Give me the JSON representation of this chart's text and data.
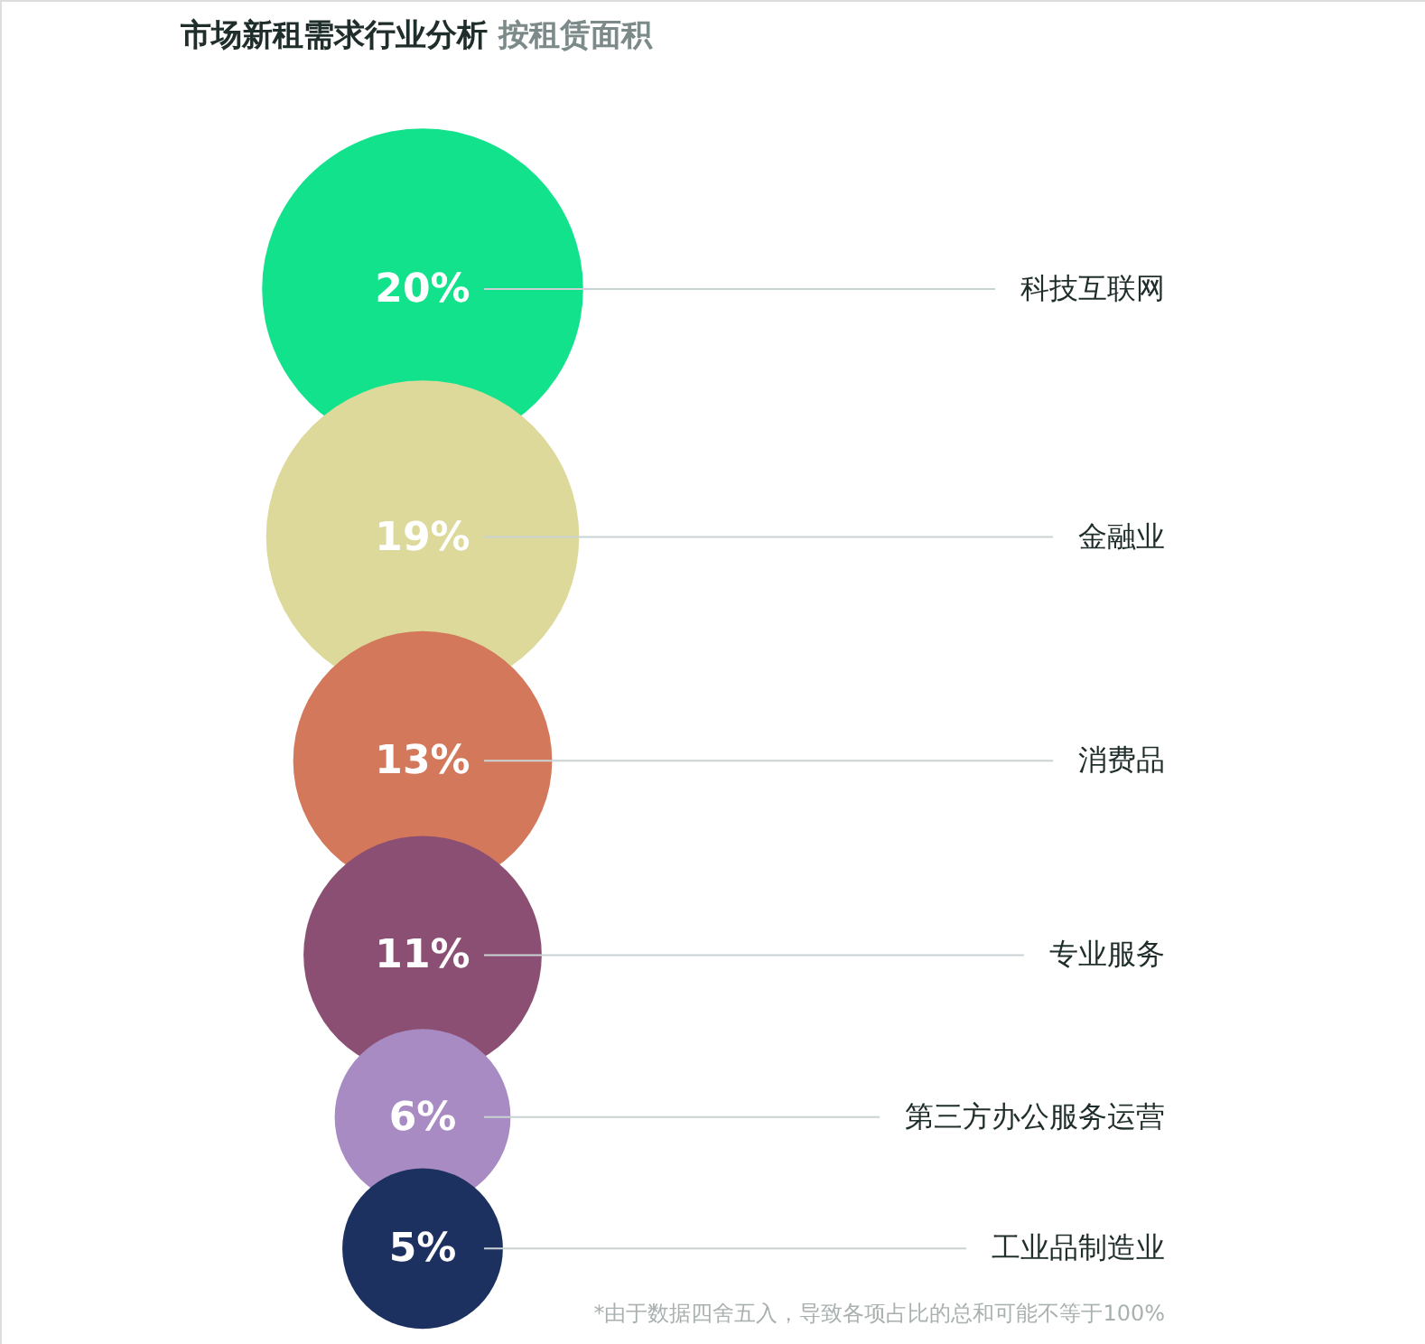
{
  "chart_data": {
    "type": "other",
    "title": "市场新租需求行业分析",
    "subtitle": "按租赁面积",
    "categories": [
      "科技互联网",
      "金融业",
      "消费品",
      "专业服务",
      "第三方办公服务运营",
      "工业品制造业"
    ],
    "values": [
      20,
      19,
      13,
      11,
      6,
      5
    ],
    "value_labels": [
      "20%",
      "19%",
      "13%",
      "11%",
      "6%",
      "5%"
    ],
    "colors": [
      "#12e28c",
      "#dcd99a",
      "#d4785c",
      "#8a4f72",
      "#a98bc3",
      "#1d3160"
    ],
    "annotations": [
      "*由于数据四舍五入，导致各项占比的总和可能不等于100%"
    ]
  }
}
